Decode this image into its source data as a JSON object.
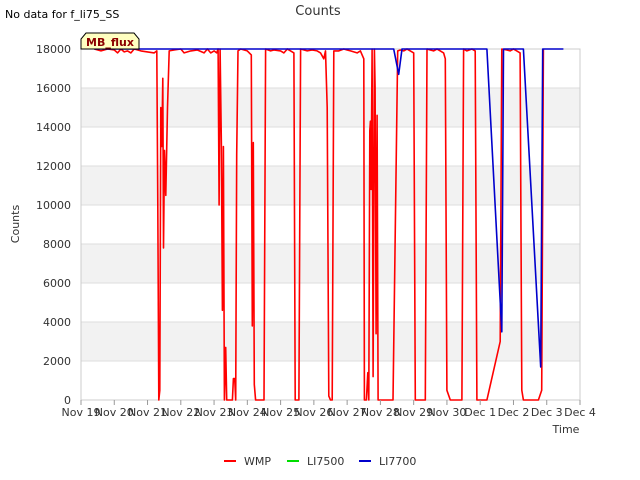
{
  "no_data_text": "No data for f_li75_SS",
  "chart_data": {
    "type": "line",
    "title": "Counts",
    "xlabel": "Time",
    "ylabel": "Counts",
    "badge": "MB_flux",
    "ylim": [
      0,
      18000
    ],
    "yticks": [
      0,
      2000,
      4000,
      6000,
      8000,
      10000,
      12000,
      14000,
      16000,
      18000
    ],
    "xlim": [
      0,
      15
    ],
    "xticks": [
      {
        "pos": 0,
        "label": "Nov 19"
      },
      {
        "pos": 1,
        "label": "Nov 20"
      },
      {
        "pos": 2,
        "label": "Nov 21"
      },
      {
        "pos": 3,
        "label": "Nov 22"
      },
      {
        "pos": 4,
        "label": "Nov 23"
      },
      {
        "pos": 5,
        "label": "Nov 24"
      },
      {
        "pos": 6,
        "label": "Nov 25"
      },
      {
        "pos": 7,
        "label": "Nov 26"
      },
      {
        "pos": 8,
        "label": "Nov 27"
      },
      {
        "pos": 9,
        "label": "Nov 28"
      },
      {
        "pos": 10,
        "label": "Nov 29"
      },
      {
        "pos": 11,
        "label": "Nov 30"
      },
      {
        "pos": 12,
        "label": "Dec 1"
      },
      {
        "pos": 13,
        "label": "Dec 2"
      },
      {
        "pos": 14,
        "label": "Dec 3"
      },
      {
        "pos": 15,
        "label": "Dec 4"
      }
    ],
    "series": [
      {
        "name": "WMP",
        "color": "#ff0000",
        "points": [
          [
            0.4,
            18000
          ],
          [
            0.6,
            17900
          ],
          [
            0.8,
            18000
          ],
          [
            1.0,
            17950
          ],
          [
            1.1,
            17800
          ],
          [
            1.2,
            18000
          ],
          [
            1.3,
            17850
          ],
          [
            1.4,
            17900
          ],
          [
            1.5,
            17800
          ],
          [
            1.6,
            18000
          ],
          [
            1.8,
            17900
          ],
          [
            2.0,
            17850
          ],
          [
            2.2,
            17800
          ],
          [
            2.28,
            17900
          ],
          [
            2.31,
            10000
          ],
          [
            2.34,
            0
          ],
          [
            2.37,
            500
          ],
          [
            2.4,
            15000
          ],
          [
            2.43,
            13000
          ],
          [
            2.46,
            16500
          ],
          [
            2.48,
            7800
          ],
          [
            2.51,
            12800
          ],
          [
            2.55,
            10500
          ],
          [
            2.6,
            15000
          ],
          [
            2.65,
            17900
          ],
          [
            2.8,
            17950
          ],
          [
            3.0,
            18000
          ],
          [
            3.1,
            17800
          ],
          [
            3.3,
            17900
          ],
          [
            3.5,
            17950
          ],
          [
            3.7,
            17800
          ],
          [
            3.8,
            18000
          ],
          [
            3.9,
            17800
          ],
          [
            4.0,
            17900
          ],
          [
            4.08,
            17800
          ],
          [
            4.12,
            18000
          ],
          [
            4.15,
            10000
          ],
          [
            4.18,
            18000
          ],
          [
            4.22,
            13000
          ],
          [
            4.25,
            4600
          ],
          [
            4.28,
            13000
          ],
          [
            4.31,
            0
          ],
          [
            4.35,
            2700
          ],
          [
            4.38,
            0
          ],
          [
            4.42,
            0
          ],
          [
            4.55,
            0
          ],
          [
            4.58,
            1100
          ],
          [
            4.62,
            1100
          ],
          [
            4.65,
            0
          ],
          [
            4.68,
            12600
          ],
          [
            4.72,
            17900
          ],
          [
            4.8,
            18000
          ],
          [
            5.0,
            17900
          ],
          [
            5.12,
            17700
          ],
          [
            5.15,
            3800
          ],
          [
            5.18,
            13200
          ],
          [
            5.21,
            800
          ],
          [
            5.25,
            0
          ],
          [
            5.35,
            0
          ],
          [
            5.5,
            0
          ],
          [
            5.55,
            18000
          ],
          [
            5.7,
            17900
          ],
          [
            5.8,
            17950
          ],
          [
            6.0,
            17900
          ],
          [
            6.1,
            17800
          ],
          [
            6.2,
            18000
          ],
          [
            6.3,
            17900
          ],
          [
            6.4,
            17800
          ],
          [
            6.44,
            0
          ],
          [
            6.55,
            0
          ],
          [
            6.6,
            18000
          ],
          [
            6.8,
            17900
          ],
          [
            6.95,
            17950
          ],
          [
            7.1,
            17900
          ],
          [
            7.2,
            17800
          ],
          [
            7.3,
            17500
          ],
          [
            7.35,
            17900
          ],
          [
            7.4,
            15000
          ],
          [
            7.45,
            200
          ],
          [
            7.5,
            0
          ],
          [
            7.55,
            0
          ],
          [
            7.6,
            17900
          ],
          [
            7.75,
            17900
          ],
          [
            7.9,
            18000
          ],
          [
            8.0,
            17950
          ],
          [
            8.1,
            17900
          ],
          [
            8.3,
            17800
          ],
          [
            8.4,
            17900
          ],
          [
            8.5,
            17500
          ],
          [
            8.52,
            0
          ],
          [
            8.58,
            0
          ],
          [
            8.62,
            1400
          ],
          [
            8.65,
            0
          ],
          [
            8.68,
            13800
          ],
          [
            8.7,
            14300
          ],
          [
            8.72,
            10800
          ],
          [
            8.75,
            18000
          ],
          [
            8.78,
            1200
          ],
          [
            8.82,
            18000
          ],
          [
            8.84,
            16000
          ],
          [
            8.87,
            3400
          ],
          [
            8.9,
            14600
          ],
          [
            8.93,
            0
          ],
          [
            9.0,
            0
          ],
          [
            9.2,
            0
          ],
          [
            9.38,
            0
          ],
          [
            9.48,
            13000
          ],
          [
            9.52,
            17900
          ],
          [
            9.6,
            17950
          ],
          [
            9.7,
            17900
          ],
          [
            9.8,
            18000
          ],
          [
            9.9,
            17900
          ],
          [
            10.0,
            17800
          ],
          [
            10.05,
            0
          ],
          [
            10.2,
            0
          ],
          [
            10.35,
            0
          ],
          [
            10.4,
            18000
          ],
          [
            10.5,
            17950
          ],
          [
            10.6,
            17900
          ],
          [
            10.7,
            18000
          ],
          [
            10.8,
            17900
          ],
          [
            10.9,
            17800
          ],
          [
            10.95,
            17500
          ],
          [
            11.0,
            500
          ],
          [
            11.1,
            0
          ],
          [
            11.3,
            0
          ],
          [
            11.45,
            0
          ],
          [
            11.5,
            18000
          ],
          [
            11.6,
            17900
          ],
          [
            11.75,
            18000
          ],
          [
            11.85,
            17900
          ],
          [
            11.9,
            0
          ],
          [
            12.05,
            0
          ],
          [
            12.2,
            0
          ],
          [
            12.6,
            3000
          ],
          [
            12.65,
            18000
          ],
          [
            12.8,
            17950
          ],
          [
            12.9,
            17900
          ],
          [
            13.0,
            18000
          ],
          [
            13.1,
            17900
          ],
          [
            13.2,
            17800
          ],
          [
            13.25,
            500
          ],
          [
            13.3,
            0
          ],
          [
            13.5,
            0
          ],
          [
            13.75,
            0
          ],
          [
            13.85,
            500
          ],
          [
            13.9,
            18000
          ]
        ]
      },
      {
        "name": "LI7500",
        "color": "#00dd00",
        "points": []
      },
      {
        "name": "LI7700",
        "color": "#0000cc",
        "points": [
          [
            0.4,
            18000
          ],
          [
            2.0,
            18000
          ],
          [
            4.0,
            18000
          ],
          [
            6.0,
            18000
          ],
          [
            8.0,
            18000
          ],
          [
            9.4,
            18000
          ],
          [
            9.55,
            16700
          ],
          [
            9.65,
            18000
          ],
          [
            11.0,
            18000
          ],
          [
            12.2,
            18000
          ],
          [
            12.65,
            3500
          ],
          [
            12.7,
            18000
          ],
          [
            13.3,
            18000
          ],
          [
            13.82,
            1700
          ],
          [
            13.88,
            18000
          ],
          [
            14.5,
            18000
          ]
        ]
      }
    ]
  }
}
